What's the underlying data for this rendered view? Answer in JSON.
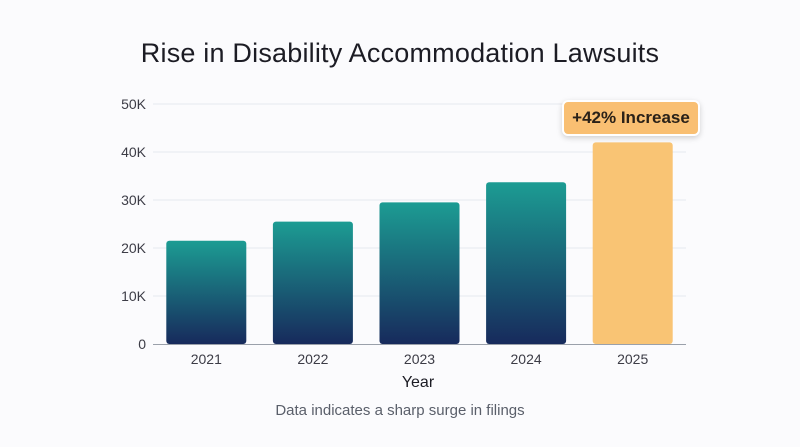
{
  "chart_data": {
    "type": "bar",
    "title": "Rise in Disability Accommodation Lawsuits",
    "xlabel": "Year",
    "ylabel": "",
    "categories": [
      "2021",
      "2022",
      "2023",
      "2024",
      "2025"
    ],
    "values": [
      21500,
      25500,
      29500,
      33700,
      42000
    ],
    "ylim": [
      0,
      50000
    ],
    "yticks": [
      0,
      10000,
      20000,
      30000,
      40000,
      50000
    ],
    "ytick_labels": [
      "0",
      "10K",
      "20K",
      "30K",
      "40K",
      "50K"
    ],
    "grid": true,
    "highlight_index": 4,
    "annotation": "+42% Increase",
    "footnote": "Data indicates a sharp surge in filings"
  },
  "colors": {
    "bar_gradient_top": "#1c9c93",
    "bar_gradient_bottom": "#172a5c",
    "highlight_bar": "#f9c474",
    "gridline": "#e6e8ee",
    "axis": "#9aa0aa"
  }
}
